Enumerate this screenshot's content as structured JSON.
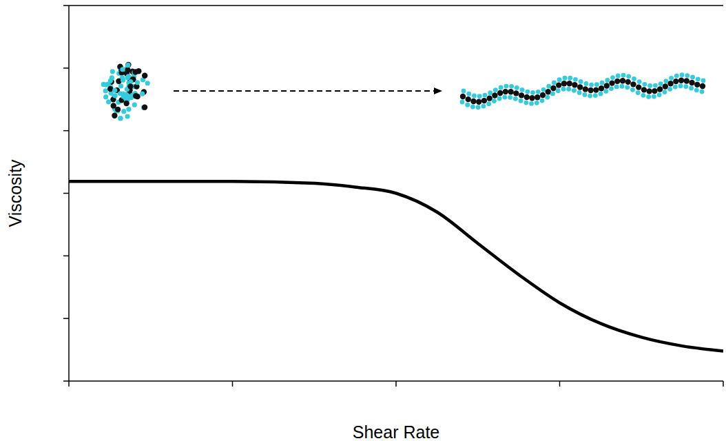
{
  "chart_data": {
    "type": "line",
    "x_label": "Shear Rate",
    "y_label": "Viscosity",
    "x": [
      1,
      3.2,
      10,
      32,
      56,
      100,
      178,
      316,
      562,
      1000,
      1778,
      3162,
      5623,
      10000
    ],
    "values": [
      3.19,
      3.19,
      3.19,
      3.16,
      3.1,
      3.0,
      2.7,
      2.2,
      1.7,
      1.25,
      0.92,
      0.7,
      0.56,
      0.48
    ],
    "color": "#000000",
    "log": "x",
    "xlim": [
      1,
      10000
    ],
    "xticks": [
      1,
      10,
      100,
      1000,
      10000
    ],
    "ylim": [
      0,
      6
    ],
    "yticks": [
      0,
      1,
      2,
      3,
      4,
      5,
      6
    ],
    "tick_labels": false
  }
}
